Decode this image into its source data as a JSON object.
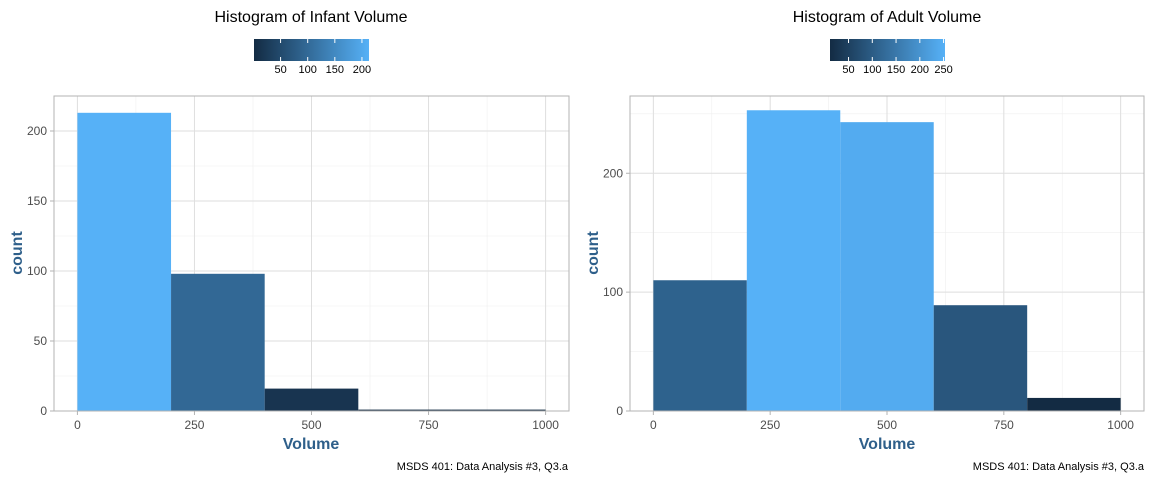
{
  "colors": {
    "low": "#132B43",
    "high": "#56B1F7"
  },
  "chart_data": [
    {
      "type": "bar",
      "title": "Histogram of Infant Volume",
      "xlabel": "Volume",
      "ylabel": "count",
      "caption": "MSDS 401: Data Analysis #3, Q3.a",
      "bins": [
        {
          "x0": 0,
          "x1": 200,
          "count": 213
        },
        {
          "x0": 200,
          "x1": 400,
          "count": 98
        },
        {
          "x0": 400,
          "x1": 600,
          "count": 16
        },
        {
          "x0": 600,
          "x1": 800,
          "count": 1
        },
        {
          "x0": 800,
          "x1": 1000,
          "count": 1
        }
      ],
      "xlim": [
        -50,
        1050
      ],
      "ylim": [
        0,
        225
      ],
      "xticks": [
        0,
        250,
        500,
        750,
        1000
      ],
      "xtick_labels": [
        "0",
        "250",
        "500",
        "750",
        "1000"
      ],
      "yticks": [
        0,
        50,
        100,
        150,
        200
      ],
      "ytick_labels": [
        "0",
        "50",
        "100",
        "150",
        "200"
      ],
      "fill_scale": {
        "min": 1,
        "max": 213,
        "ticks": [
          50,
          100,
          150,
          200
        ],
        "tick_labels": [
          "50",
          "100",
          "150",
          "200"
        ]
      },
      "legend_position": "top",
      "grid": true
    },
    {
      "type": "bar",
      "title": "Histogram of Adult Volume",
      "xlabel": "Volume",
      "ylabel": "count",
      "caption": "MSDS 401: Data Analysis #3, Q3.a",
      "bins": [
        {
          "x0": 0,
          "x1": 200,
          "count": 110
        },
        {
          "x0": 200,
          "x1": 400,
          "count": 253
        },
        {
          "x0": 400,
          "x1": 600,
          "count": 243
        },
        {
          "x0": 600,
          "x1": 800,
          "count": 89
        },
        {
          "x0": 800,
          "x1": 1000,
          "count": 11
        }
      ],
      "xlim": [
        -50,
        1050
      ],
      "ylim": [
        0,
        265
      ],
      "xticks": [
        0,
        250,
        500,
        750,
        1000
      ],
      "xtick_labels": [
        "0",
        "250",
        "500",
        "750",
        "1000"
      ],
      "yticks": [
        0,
        100,
        200
      ],
      "ytick_labels": [
        "0",
        "100",
        "200"
      ],
      "fill_scale": {
        "min": 11,
        "max": 253,
        "ticks": [
          50,
          100,
          150,
          200,
          250
        ],
        "tick_labels": [
          "50",
          "100",
          "150",
          "200",
          "250"
        ]
      },
      "legend_position": "top",
      "grid": true
    }
  ]
}
